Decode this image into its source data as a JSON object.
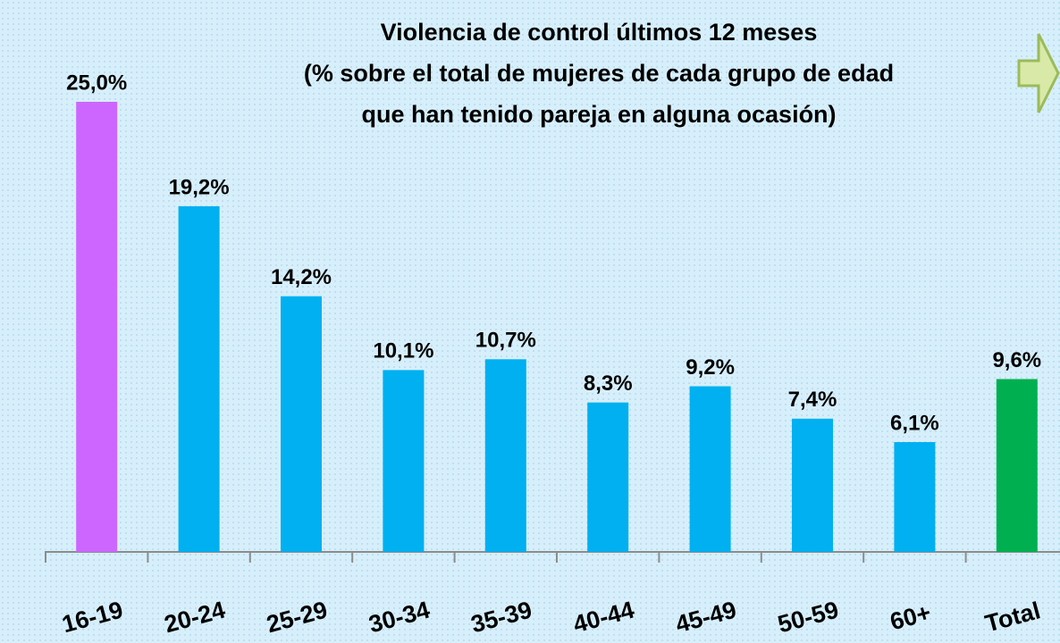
{
  "chart_data": {
    "type": "bar",
    "title": [
      "Violencia de control últimos 12 meses",
      "(% sobre el total de mujeres de cada grupo de edad",
      "que han tenido pareja en alguna ocasión)"
    ],
    "categories": [
      "16-19",
      "20-24",
      "25-29",
      "30-34",
      "35-39",
      "40-44",
      "45-49",
      "50-59",
      "60+",
      "Total"
    ],
    "values": [
      25.0,
      19.2,
      14.2,
      10.1,
      10.7,
      8.3,
      9.2,
      7.4,
      6.1,
      9.6
    ],
    "value_labels": [
      "25,0%",
      "19,2%",
      "14,2%",
      "10,1%",
      "10,7%",
      "8,3%",
      "9,2%",
      "7,4%",
      "6,1%",
      "9,6%"
    ],
    "colors": [
      "#cc66ff",
      "#00b0f0",
      "#00b0f0",
      "#00b0f0",
      "#00b0f0",
      "#00b0f0",
      "#00b0f0",
      "#00b0f0",
      "#00b0f0",
      "#00b050"
    ]
  }
}
